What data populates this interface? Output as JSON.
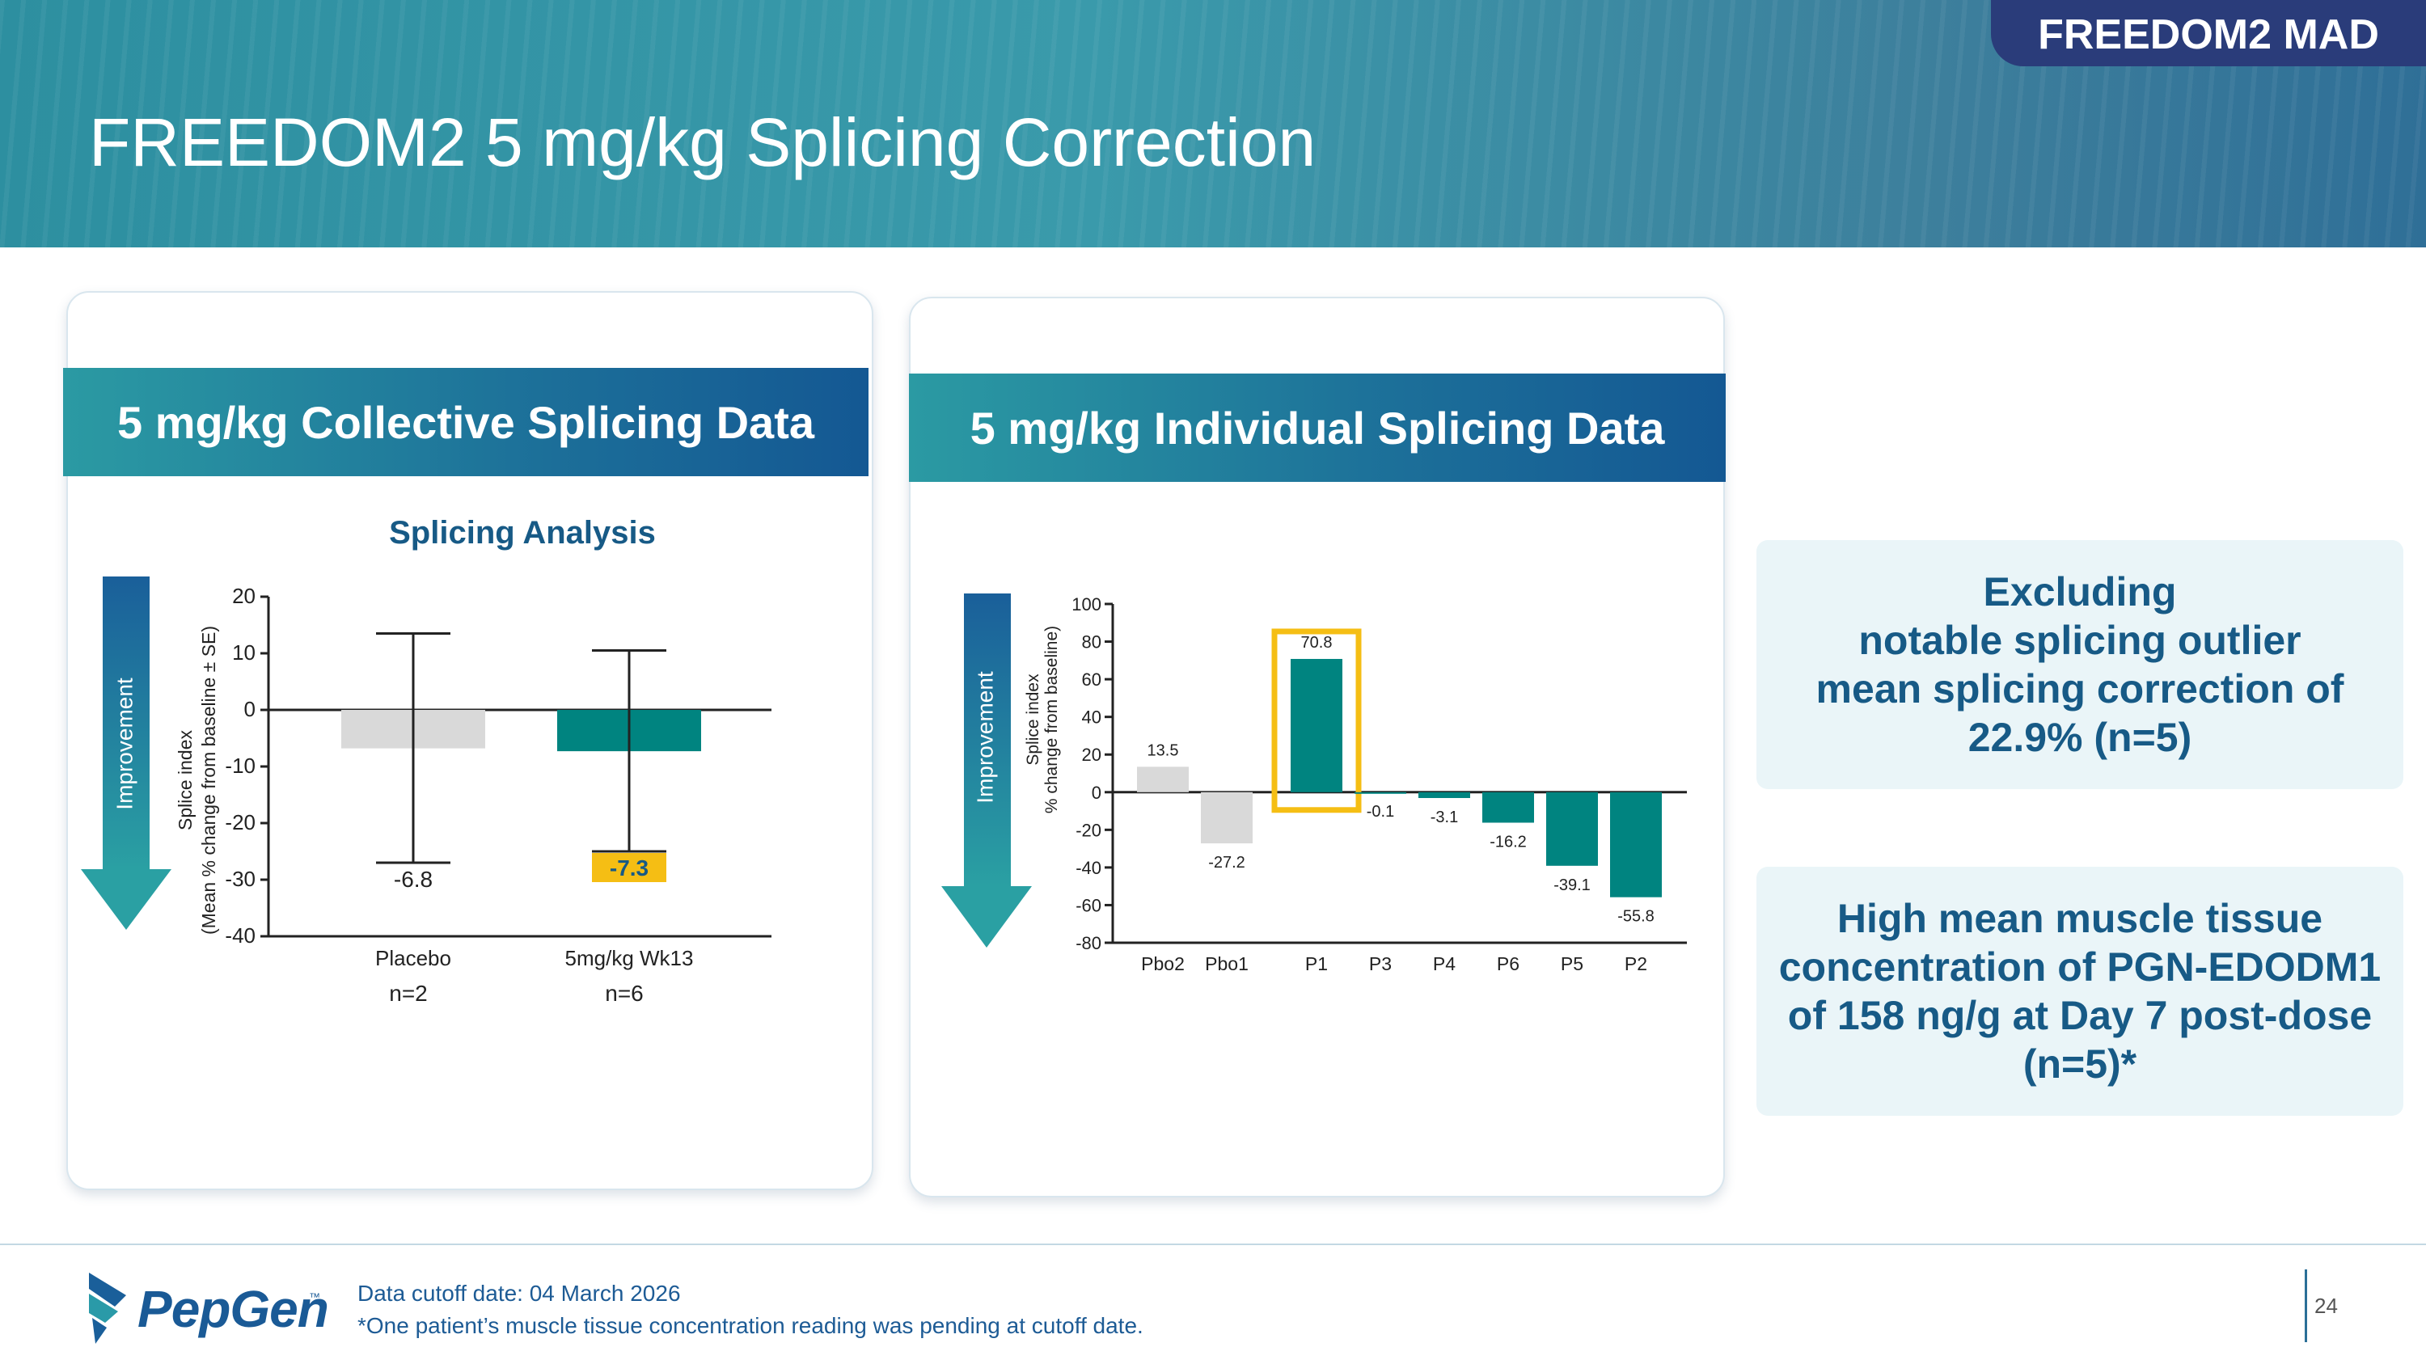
{
  "header": {
    "section_tag": "FREEDOM2 MAD",
    "title": "FREEDOM2 5 mg/kg Splicing Correction"
  },
  "colors": {
    "teal": "#008480",
    "placebo_gray": "#d9d9d9",
    "highlight_yellow": "#f5be14",
    "navy": "#175a86"
  },
  "left_panel": {
    "banner": "5 mg/kg Collective Splicing Data",
    "arrow_label": "Improvement"
  },
  "right_panel": {
    "banner": "5 mg/kg Individual Splicing Data",
    "arrow_label": "Improvement"
  },
  "info_boxes": {
    "box1": [
      "Excluding",
      "notable splicing outlier",
      "mean splicing correction of",
      "22.9% (n=5)"
    ],
    "box2": [
      "High mean muscle tissue",
      "concentration of PGN-EDODM1",
      "of 158 ng/g at Day 7 post-dose",
      "(n=5)*"
    ]
  },
  "footer": {
    "logo_text": "PepGen",
    "logo_tm": "™",
    "note1": "Data cutoff date: 04 March 2026",
    "note2": "*One patient’s muscle tissue concentration reading was pending at cutoff date.",
    "page_number": "24"
  },
  "chart_data": [
    {
      "type": "bar",
      "title": "Splicing Analysis",
      "ylabel": [
        "Splice index",
        "(Mean % change from baseline ± SE)"
      ],
      "categories": [
        "Placebo",
        "5mg/kg  Wk13"
      ],
      "sublabels": [
        "n=2",
        "n=6"
      ],
      "values": [
        -6.8,
        -7.3
      ],
      "value_labels": [
        "-6.8",
        "-7.3"
      ],
      "error_bars": [
        [
          -27,
          13.5
        ],
        [
          -25,
          10.5
        ]
      ],
      "bar_colors": [
        "#d9d9d9",
        "#008480"
      ],
      "highlight_label_index": 1,
      "ylim": [
        -40,
        20
      ],
      "yticks": [
        20,
        10,
        0,
        -10,
        -20,
        -30,
        -40
      ],
      "grid": false
    },
    {
      "type": "bar",
      "title": "",
      "ylabel": [
        "Splice index",
        "% change from baseline)"
      ],
      "categories": [
        "Pbo2",
        "Pbo1",
        "P1",
        "P3",
        "P4",
        "P6",
        "P5",
        "P2"
      ],
      "values": [
        13.5,
        -27.2,
        70.8,
        -0.1,
        -3.1,
        -16.2,
        -39.1,
        -55.8
      ],
      "value_labels": [
        "13.5",
        "-27.2",
        "70.8",
        "-0.1",
        "-3.1",
        "-16.2",
        "-39.1",
        "-55.8"
      ],
      "bar_colors": [
        "#d9d9d9",
        "#d9d9d9",
        "#008480",
        "#008480",
        "#008480",
        "#008480",
        "#008480",
        "#008480"
      ],
      "highlight_index": 2,
      "ylim": [
        -80,
        100
      ],
      "yticks": [
        100,
        80,
        60,
        40,
        20,
        0,
        -20,
        -40,
        -60,
        -80
      ],
      "grid": false
    }
  ]
}
